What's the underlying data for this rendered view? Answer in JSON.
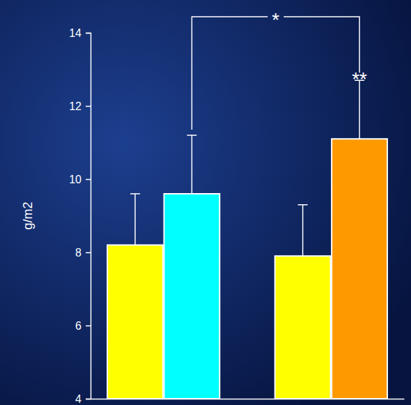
{
  "chart_data": {
    "type": "bar",
    "y_label": "g/m2",
    "categories": [
      null,
      null
    ],
    "series": [
      {
        "color": "#ffff00",
        "values": [
          8.2,
          7.9
        ],
        "errors": [
          1.4,
          1.4
        ]
      },
      {
        "colors": [
          "#00ffff",
          "#ff9900"
        ],
        "values": [
          9.6,
          11.1
        ],
        "errors": [
          1.6,
          1.6
        ]
      }
    ],
    "ylim": [
      4,
      14
    ],
    "yticks": [
      4,
      6,
      8,
      10,
      12,
      14
    ],
    "annotations": [
      {
        "text": "*"
      },
      {
        "text": "**"
      }
    ]
  }
}
